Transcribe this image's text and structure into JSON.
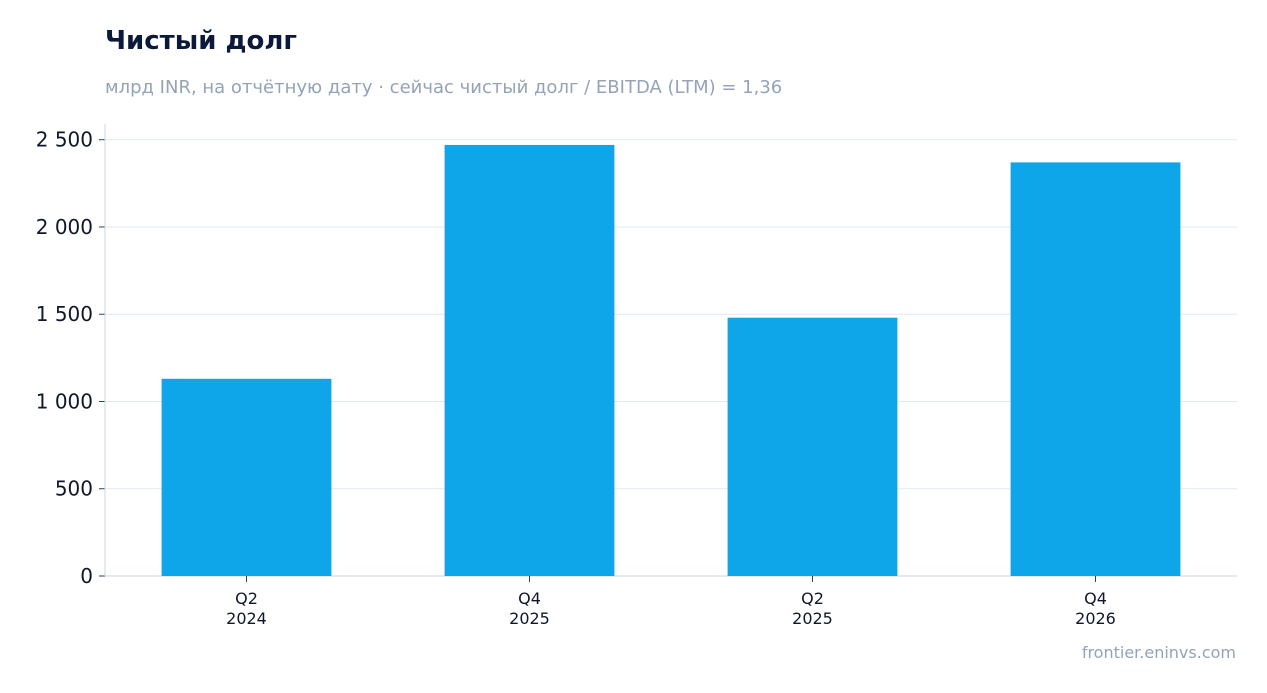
{
  "chart_data": {
    "type": "bar",
    "title": "Чистый долг",
    "subtitle": "млрд INR, на отчётную дату · сейчас чистый долг / EBITDA (LTM) = 1,36",
    "categories": [
      [
        "Q2",
        "2024"
      ],
      [
        "Q4",
        "2025"
      ],
      [
        "Q2",
        "2025"
      ],
      [
        "Q4",
        "2026"
      ]
    ],
    "values": [
      1130,
      2470,
      1480,
      2370
    ],
    "ylim": [
      0,
      2590
    ],
    "yticks": [
      0,
      500,
      1000,
      1500,
      2000,
      2500
    ],
    "ytick_labels": [
      "0",
      "500",
      "1 000",
      "1 500",
      "2 000",
      "2 500"
    ],
    "grid": true,
    "bar_color": "#0ea5e9",
    "grid_color": "#e2e8f0",
    "axis_color": "#cbd5e1"
  },
  "credit": "frontier.eninvs.com"
}
